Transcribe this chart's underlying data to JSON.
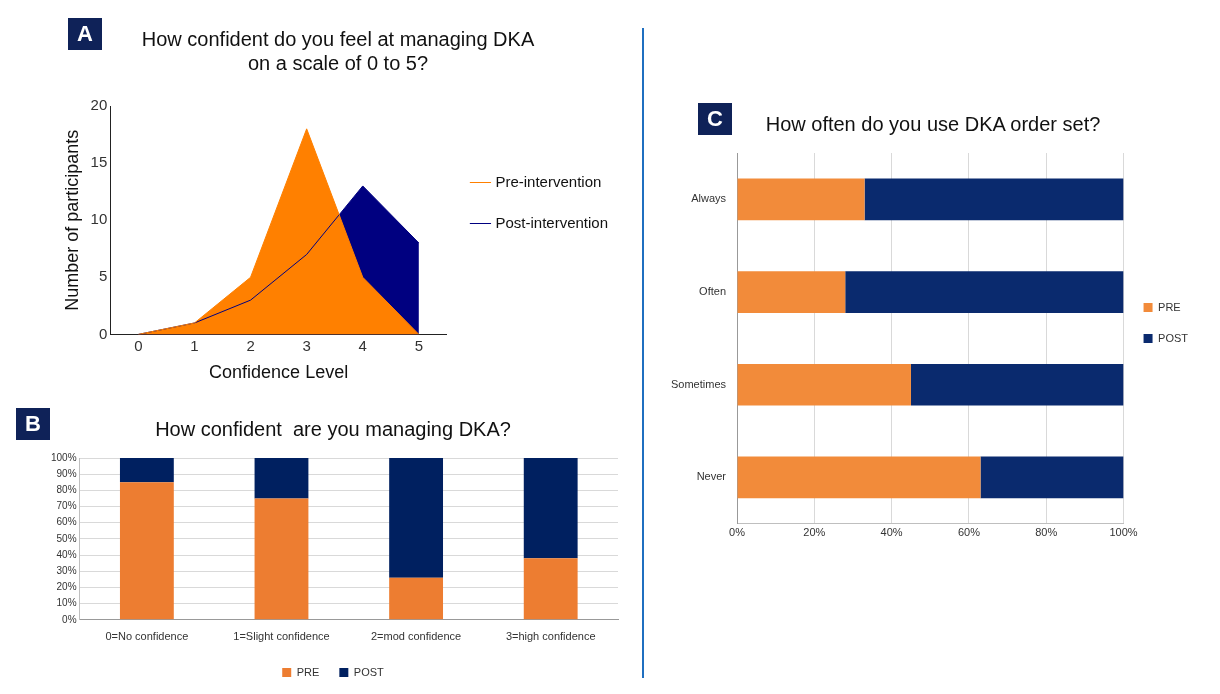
{
  "chart_data": [
    {
      "type": "area",
      "title": "How confident do you feel at managing DKA\non a scale of 0 to 5?",
      "annotations": [
        "A"
      ],
      "xlabel": "Confidence Level",
      "ylabel": "Number of participants",
      "x": [
        0,
        1,
        2,
        3,
        4,
        5
      ],
      "series": [
        {
          "name": "Pre-intervention",
          "color": "#ff8000",
          "values": [
            0,
            1,
            5,
            18,
            5,
            0
          ]
        },
        {
          "name": "Post-intervention",
          "color": "#000080",
          "values": [
            0,
            1,
            3,
            7,
            13,
            8
          ]
        }
      ],
      "xlim": [
        -0.5,
        5.5
      ],
      "xticks": [
        0,
        1,
        2,
        3,
        4,
        5
      ],
      "ylim": [
        0,
        20
      ],
      "yticks": [
        0,
        5,
        10,
        15,
        20
      ],
      "grid": false,
      "legend": "right",
      "marker": "none"
    },
    {
      "type": "bar",
      "stacked": true,
      "title": "How confident  are you managing DKA?",
      "annotations": [
        "B"
      ],
      "categories": [
        "0=No confidence",
        "1=Slight confidence",
        "2=mod confidence",
        "3=high confidence"
      ],
      "series": [
        {
          "name": "PRE",
          "color": "#ed7d31",
          "values": [
            85,
            75,
            26,
            38
          ]
        },
        {
          "name": "POST",
          "color": "#002060",
          "values": [
            15,
            25,
            74,
            62
          ]
        }
      ],
      "ylim": [
        0,
        100
      ],
      "yticks": [
        {
          "value": 0,
          "label": "0%"
        },
        {
          "value": 10,
          "label": "10%"
        },
        {
          "value": 20,
          "label": "20%"
        },
        {
          "value": 30,
          "label": "30%"
        },
        {
          "value": 40,
          "label": "40%"
        },
        {
          "value": 50,
          "label": "50%"
        },
        {
          "value": 60,
          "label": "60%"
        },
        {
          "value": 70,
          "label": "70%"
        },
        {
          "value": 80,
          "label": "80%"
        },
        {
          "value": 90,
          "label": "90%"
        },
        {
          "value": 100,
          "label": "100%"
        }
      ],
      "grid": "y",
      "legend": "bottom"
    },
    {
      "type": "bar",
      "stacked": true,
      "orientation": "horizontal",
      "title": "How often do you use DKA order set?",
      "annotations": [
        "C"
      ],
      "categories": [
        "Always",
        "Often",
        "Sometimes",
        "Never"
      ],
      "series": [
        {
          "name": "PRE",
          "color": "#f28b3a",
          "values": [
            33,
            28,
            45,
            63
          ]
        },
        {
          "name": "POST",
          "color": "#0a2a6e",
          "values": [
            67,
            72,
            55,
            37
          ]
        }
      ],
      "xlim": [
        0,
        100
      ],
      "xticks": [
        {
          "value": 0,
          "label": "0%"
        },
        {
          "value": 20,
          "label": "20%"
        },
        {
          "value": 40,
          "label": "40%"
        },
        {
          "value": 60,
          "label": "60%"
        },
        {
          "value": 80,
          "label": "80%"
        },
        {
          "value": 100,
          "label": "100%"
        }
      ],
      "grid": "x",
      "legend": "right"
    }
  ]
}
